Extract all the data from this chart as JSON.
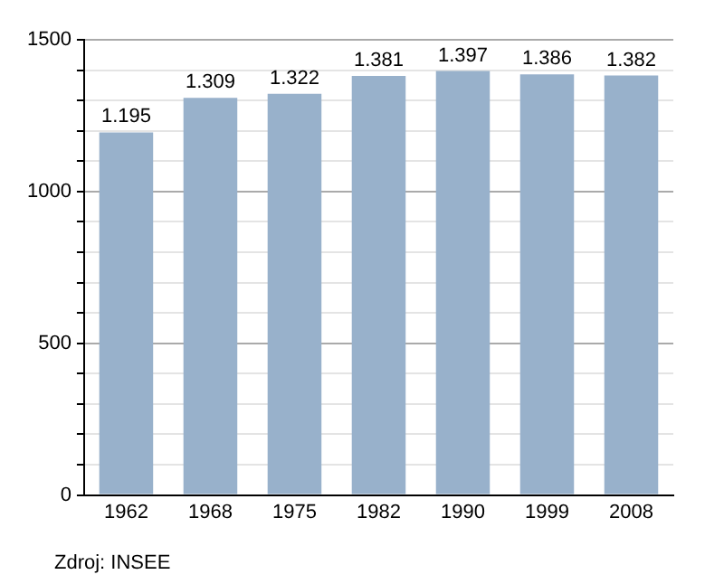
{
  "chart_data": {
    "type": "bar",
    "categories": [
      "1962",
      "1968",
      "1975",
      "1982",
      "1990",
      "1999",
      "2008"
    ],
    "values": [
      1195,
      1309,
      1322,
      1381,
      1397,
      1386,
      1382
    ],
    "value_labels": [
      "1.195",
      "1.309",
      "1.322",
      "1.381",
      "1.397",
      "1.386",
      "1.382"
    ],
    "color": "#98b1cb",
    "ylim": [
      0,
      1500
    ],
    "yticks": [
      0,
      {
        "value": 100,
        "label": null
      },
      {
        "value": 200,
        "label": null
      },
      {
        "value": 300,
        "label": null
      },
      {
        "value": 400,
        "label": null
      },
      500,
      {
        "value": 600,
        "label": null
      },
      {
        "value": 700,
        "label": null
      },
      {
        "value": 800,
        "label": null
      },
      {
        "value": 900,
        "label": null
      },
      1000,
      {
        "value": 1100,
        "label": null
      },
      {
        "value": 1200,
        "label": null
      },
      {
        "value": 1300,
        "label": null
      },
      {
        "value": 1400,
        "label": null
      },
      1500
    ],
    "grid": "y",
    "annotations": [
      "Zdroj: INSEE"
    ]
  }
}
